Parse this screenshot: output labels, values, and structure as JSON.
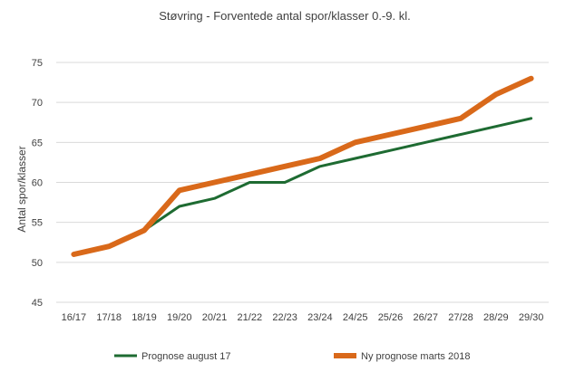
{
  "chart_data": {
    "type": "line",
    "title": "Støvring - Forventede antal spor/klasser 0.-9. kl.",
    "xlabel": "",
    "ylabel": "Antal spor/klasser",
    "categories": [
      "16/17",
      "17/18",
      "18/19",
      "19/20",
      "20/21",
      "21/22",
      "22/23",
      "23/24",
      "24/25",
      "25/26",
      "26/27",
      "27/28",
      "28/29",
      "29/30"
    ],
    "ylim": [
      45,
      75
    ],
    "yticks": [
      45,
      50,
      55,
      60,
      65,
      70,
      75
    ],
    "grid": true,
    "legend_position": "bottom",
    "series": [
      {
        "name": "Prognose august 17",
        "color": "#1e6b32",
        "values": [
          51,
          52,
          54,
          57,
          58,
          60,
          60,
          62,
          63,
          64,
          65,
          66,
          67,
          68
        ]
      },
      {
        "name": "Ny prognose marts 2018",
        "color": "#d9691a",
        "values": [
          51,
          52,
          54,
          59,
          60,
          61,
          62,
          63,
          65,
          66,
          67,
          68,
          71,
          73
        ]
      }
    ]
  }
}
